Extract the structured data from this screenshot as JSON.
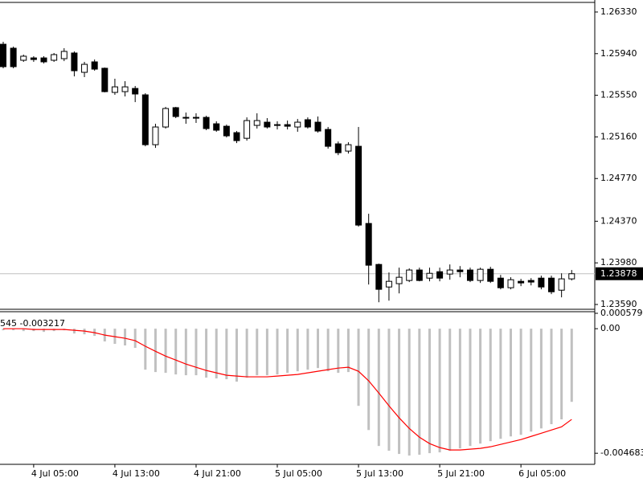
{
  "chart_data": [
    {
      "type": "candlestick",
      "open": [
        1.26028,
        1.25991,
        1.25878,
        1.259,
        1.259,
        1.25878,
        1.25893,
        1.25946,
        1.25765,
        1.25863,
        1.25803,
        1.25577,
        1.25584,
        1.25614,
        1.25554,
        1.25087,
        1.25253,
        1.25434,
        1.25343,
        1.25343,
        1.25343,
        1.25283,
        1.2526,
        1.252,
        1.25147,
        1.25268,
        1.25298,
        1.25275,
        1.25275,
        1.25253,
        1.25321,
        1.25298,
        1.2523,
        1.25095,
        1.25027,
        1.25072,
        1.24349,
        1.23965,
        1.23754,
        1.23785,
        1.23815,
        1.23913,
        1.23837,
        1.23897,
        1.23875,
        1.23913,
        1.23913,
        1.23815,
        1.2392,
        1.23837,
        1.23747,
        1.23807,
        1.23815,
        1.23837,
        1.23837,
        1.23724,
        1.2383
      ],
      "high": [
        1.26051,
        1.26006,
        1.25931,
        1.25916,
        1.25916,
        1.25946,
        1.25991,
        1.25961,
        1.25863,
        1.25885,
        1.2581,
        1.25705,
        1.25682,
        1.25637,
        1.25569,
        1.25283,
        1.25441,
        1.25441,
        1.25388,
        1.25381,
        1.25358,
        1.25306,
        1.25275,
        1.25215,
        1.25343,
        1.25381,
        1.25336,
        1.25306,
        1.25313,
        1.25328,
        1.25343,
        1.25351,
        1.25253,
        1.25117,
        1.2511,
        1.25253,
        1.2444,
        1.23973,
        1.2389,
        1.23935,
        1.23928,
        1.23935,
        1.23935,
        1.23935,
        1.23965,
        1.2395,
        1.23935,
        1.23935,
        1.23943,
        1.23867,
        1.23845,
        1.2383,
        1.23837,
        1.2386,
        1.2386,
        1.23882,
        1.23913
      ],
      "low": [
        1.25803,
        1.25803,
        1.25863,
        1.25863,
        1.25848,
        1.25863,
        1.2587,
        1.25727,
        1.2572,
        1.2578,
        1.25577,
        1.25554,
        1.25539,
        1.25486,
        1.25072,
        1.25057,
        1.25238,
        1.25336,
        1.25283,
        1.25291,
        1.25223,
        1.25208,
        1.25155,
        1.25102,
        1.25125,
        1.25238,
        1.25238,
        1.2523,
        1.2523,
        1.25208,
        1.25238,
        1.252,
        1.2505,
        1.24989,
        1.25004,
        1.24319,
        1.23777,
        1.23611,
        1.23626,
        1.23694,
        1.238,
        1.23807,
        1.23807,
        1.23807,
        1.23822,
        1.23845,
        1.238,
        1.23792,
        1.23792,
        1.23732,
        1.23732,
        1.23762,
        1.23769,
        1.23732,
        1.23687,
        1.23657,
        1.23815
      ],
      "close": [
        1.25818,
        1.25818,
        1.25916,
        1.25885,
        1.25863,
        1.25931,
        1.25961,
        1.2578,
        1.2584,
        1.25795,
        1.25584,
        1.25629,
        1.25629,
        1.25562,
        1.25087,
        1.25253,
        1.25426,
        1.25351,
        1.25336,
        1.25336,
        1.25238,
        1.25223,
        1.2517,
        1.25125,
        1.25313,
        1.25313,
        1.25253,
        1.25268,
        1.2526,
        1.25298,
        1.25253,
        1.25215,
        1.25072,
        1.25012,
        1.25087,
        1.24334,
        1.23958,
        1.23732,
        1.23807,
        1.23845,
        1.23913,
        1.23815,
        1.23882,
        1.23837,
        1.23913,
        1.23897,
        1.23815,
        1.2392,
        1.23807,
        1.23747,
        1.23822,
        1.23792,
        1.238,
        1.23754,
        1.23709,
        1.2383,
        1.23878
      ],
      "up_color": "#ffffff",
      "down_color": "#000000",
      "ylim": [
        1.23545,
        1.2642
      ],
      "yticks": [
        {
          "value": 1.2633,
          "label": "1.26330"
        },
        {
          "value": 1.2594,
          "label": "1.25940"
        },
        {
          "value": 1.2555,
          "label": "1.25550"
        },
        {
          "value": 1.2516,
          "label": "1.25160"
        },
        {
          "value": 1.2477,
          "label": "1.24770"
        },
        {
          "value": 1.2437,
          "label": "1.24370"
        },
        {
          "value": 1.2398,
          "label": "1.23980"
        },
        {
          "value": 1.2359,
          "label": "1.23590"
        }
      ],
      "current_price": {
        "value": 1.23878,
        "label": "1.23878"
      }
    },
    {
      "type": "macd",
      "label": "545 -0.003217",
      "categories": [
        null,
        null,
        null,
        "4 Jul 05:00",
        null,
        null,
        null,
        null,
        null,
        null,
        null,
        "4 Jul 13:00",
        null,
        null,
        null,
        null,
        null,
        null,
        null,
        "4 Jul 21:00",
        null,
        null,
        null,
        null,
        null,
        null,
        null,
        "5 Jul 05:00",
        null,
        null,
        null,
        null,
        null,
        null,
        null,
        "5 Jul 13:00",
        null,
        null,
        null,
        null,
        null,
        null,
        null,
        "5 Jul 21:00",
        null,
        null,
        null,
        null,
        null,
        null,
        null,
        "6 Jul 05:00",
        null,
        null,
        null,
        null,
        null
      ],
      "series": [
        {
          "type": "bar",
          "color": "#c0c0c0",
          "values": [
            -6e-05,
            -6e-05,
            -9e-05,
            -9e-05,
            -0.00012,
            -9e-05,
            -6e-05,
            -0.00018,
            -0.00021,
            -0.00027,
            -0.00048,
            -0.00057,
            -0.00063,
            -0.00072,
            -0.00154,
            -0.00163,
            -0.00166,
            -0.00172,
            -0.00175,
            -0.00175,
            -0.00184,
            -0.00187,
            -0.0019,
            -0.00199,
            -0.00184,
            -0.00175,
            -0.00175,
            -0.00172,
            -0.00166,
            -0.0016,
            -0.00154,
            -0.00148,
            -0.0016,
            -0.00166,
            -0.00163,
            -0.0029,
            -0.00381,
            -0.00441,
            -0.00459,
            -0.00471,
            -0.00477,
            -0.00474,
            -0.00468,
            -0.00465,
            -0.00459,
            -0.0045,
            -0.00441,
            -0.00432,
            -0.00423,
            -0.00414,
            -0.00405,
            -0.00399,
            -0.00387,
            -0.00375,
            -0.00359,
            -0.00341,
            -0.00275
          ]
        },
        {
          "type": "line",
          "color": "#ff0000",
          "values": [
            0,
            0,
            0,
            -3e-05,
            -3e-05,
            -3e-05,
            -3e-05,
            -6e-05,
            -9e-05,
            -0.00015,
            -0.00024,
            -0.0003,
            -0.00036,
            -0.00045,
            -0.00066,
            -0.00085,
            -0.00103,
            -0.00118,
            -0.00133,
            -0.00145,
            -0.00157,
            -0.00166,
            -0.00175,
            -0.00178,
            -0.00181,
            -0.00181,
            -0.00181,
            -0.00178,
            -0.00175,
            -0.00172,
            -0.00166,
            -0.0016,
            -0.00154,
            -0.00148,
            -0.00145,
            -0.0016,
            -0.00196,
            -0.00242,
            -0.0029,
            -0.00335,
            -0.00375,
            -0.00408,
            -0.00432,
            -0.00447,
            -0.00456,
            -0.00456,
            -0.00453,
            -0.0045,
            -0.00444,
            -0.00435,
            -0.00426,
            -0.00417,
            -0.00405,
            -0.00393,
            -0.00381,
            -0.00369,
            -0.00341
          ]
        }
      ],
      "ylim": [
        -0.0051,
        0.000579
      ],
      "yticks": [
        {
          "value": 0.000579,
          "label": "0.000579"
        },
        {
          "value": 0,
          "label": "0.00"
        },
        {
          "value": -0.004683,
          "label": "-0.004683"
        }
      ]
    }
  ]
}
